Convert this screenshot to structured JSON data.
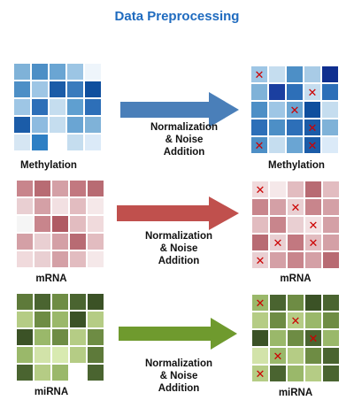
{
  "title": "Data Preprocessing",
  "rows": [
    {
      "input_label": "Methylation",
      "output_label": "Methylation",
      "step_lines": [
        "Normalization",
        "& Noise",
        "Addition"
      ],
      "arrow_color": "#4a7fb9",
      "input_cells": [
        "#7fb2d8",
        "#4d8fc6",
        "#6aa5d3",
        "#9cc5e4",
        "#eef5fb",
        "#4d8fc6",
        "#9ec6e5",
        "#1b5ca8",
        "#3a7bbd",
        "#0f4f9e",
        "#9ec6e5",
        "#2d6fb8",
        "#c5ddef",
        "#5f9fd0",
        "#2d6fb8",
        "#1b5ca8",
        "#8dbbe0",
        "#c5ddef",
        "#6aa5d3",
        "#7fb2d8",
        "#d6e6f3",
        "#2e7fc4",
        "#ffffff",
        "#c5ddef",
        "#dbeaf8"
      ],
      "output_cells": [
        "#9ec6e5",
        "#c5ddef",
        "#4d8fc6",
        "#a8cbe6",
        "#0f2f8f",
        "#7fb2d8",
        "#1b3fa0",
        "#2d6fb8",
        "#c5ddef",
        "#2d6fb8",
        "#4d8fc6",
        "#9ec6e5",
        "#6aa5d3",
        "#0f4f9e",
        "#c5ddef",
        "#2d6fb8",
        "#4d8fc6",
        "#2d6fb8",
        "#1b5ca8",
        "#7fb2d8",
        "#4d8fc6",
        "#c5ddef",
        "#6aa5d3",
        "#1b5ca8",
        "#dbeaf8"
      ],
      "output_marks": [
        0,
        8,
        12,
        18,
        20,
        23
      ]
    },
    {
      "input_label": "mRNA",
      "output_label": "mRNA",
      "step_lines": [
        "Normalization",
        "& Noise",
        "Addition"
      ],
      "arrow_color": "#c0504d",
      "input_cells": [
        "#c8858c",
        "#b86b73",
        "#d4a0a6",
        "#c27880",
        "#b86b73",
        "#e9cfd2",
        "#d4a0a6",
        "#f2e0e2",
        "#e2bcc0",
        "#f5e8e9",
        "#f5f5f5",
        "#c8858c",
        "#b05a63",
        "#e2bcc0",
        "#f0dadc",
        "#d4a0a6",
        "#e9cfd2",
        "#d4a0a6",
        "#b86b73",
        "#e2bcc0",
        "#f0dadc",
        "#e9cfd2",
        "#d4a0a6",
        "#e2bcc0",
        "#f5e8e9"
      ],
      "output_cells": [
        "#f0dadc",
        "#f5e8e9",
        "#e2bcc0",
        "#b86b73",
        "#e2bcc0",
        "#c8858c",
        "#d4a0a6",
        "#e9cfd2",
        "#c8858c",
        "#d4a0a6",
        "#e2bcc0",
        "#c8858c",
        "#e9cfd2",
        "#f2e0e2",
        "#d4a0a6",
        "#b86b73",
        "#e9cfd2",
        "#c27880",
        "#e2bcc0",
        "#d4a0a6",
        "#e9cfd2",
        "#d4a0a6",
        "#c8858c",
        "#d4a0a6",
        "#b86b73"
      ],
      "output_marks": [
        0,
        7,
        13,
        16,
        18,
        20
      ]
    },
    {
      "input_label": "miRNA",
      "output_label": "miRNA",
      "step_lines": [
        "Normalization",
        "& Noise",
        "Addition"
      ],
      "arrow_color": "#6f9a2e",
      "input_cells": [
        "#5e7a3a",
        "#4a6430",
        "#6e8c44",
        "#4a6430",
        "#3b5226",
        "#b5cc85",
        "#6e8c44",
        "#9ab86a",
        "#3b5226",
        "#b5cc85",
        "#3b5226",
        "#9ab86a",
        "#6e8c44",
        "#b5cc85",
        "#6e8c44",
        "#9ab86a",
        "#d2e3a9",
        "#d8eab0",
        "#b5cc85",
        "#5e7a3a",
        "#4a6430",
        "#b5cc85",
        "#9ab86a",
        "#ffffff",
        "#4a6430"
      ],
      "output_cells": [
        "#9ab86a",
        "#4a6430",
        "#6e8c44",
        "#3b5226",
        "#4a6430",
        "#b5cc85",
        "#6e8c44",
        "#b5cc85",
        "#9ab86a",
        "#6e8c44",
        "#3b5226",
        "#9ab86a",
        "#6e8c44",
        "#4a6430",
        "#9ab86a",
        "#d2e3a9",
        "#9ab86a",
        "#b5cc85",
        "#6e8c44",
        "#4a6430",
        "#b5cc85",
        "#4a6430",
        "#9ab86a",
        "#b5cc85",
        "#4a6430"
      ],
      "output_marks": [
        0,
        7,
        13,
        16,
        20
      ]
    }
  ]
}
